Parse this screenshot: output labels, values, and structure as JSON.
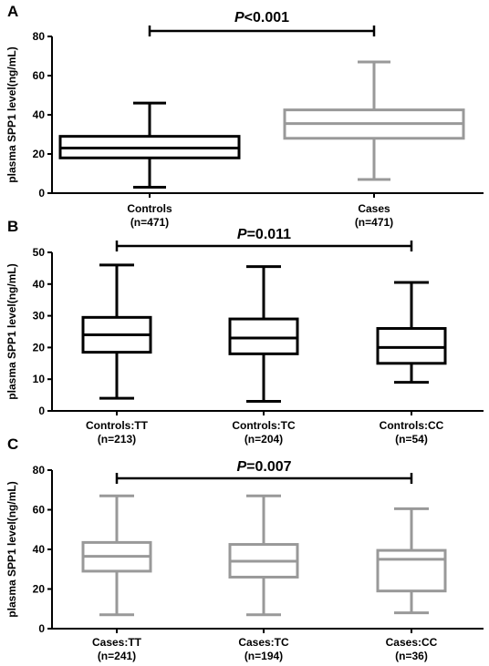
{
  "chart_data": [
    {
      "type": "box",
      "panel": "A",
      "ylabel": "plasma SPP1 level(ng/mL)",
      "ylim": [
        0,
        80
      ],
      "yticks": [
        0,
        20,
        40,
        60,
        80
      ],
      "p_label": {
        "prefix": "P",
        "rest": "<0.001"
      },
      "comparison": [
        0,
        1
      ],
      "categories": [
        {
          "label": "Controls",
          "n": "(n=471)",
          "color": "#000000",
          "min": 3,
          "q1": 18,
          "median": 23,
          "q3": 29,
          "max": 46
        },
        {
          "label": "Cases",
          "n": "(n=471)",
          "color": "#999999",
          "min": 7,
          "q1": 28,
          "median": 35.5,
          "q3": 42.5,
          "max": 67
        }
      ]
    },
    {
      "type": "box",
      "panel": "B",
      "ylabel": "plasma SPP1 level(ng/mL)",
      "ylim": [
        0,
        50
      ],
      "yticks": [
        0,
        10,
        20,
        30,
        40,
        50
      ],
      "p_label": {
        "prefix": "P",
        "rest": "=0.011"
      },
      "comparison": [
        0,
        2
      ],
      "categories": [
        {
          "label": "Controls:TT",
          "n": "(n=213)",
          "color": "#000000",
          "min": 4,
          "q1": 18.5,
          "median": 24,
          "q3": 29.5,
          "max": 46
        },
        {
          "label": "Controls:TC",
          "n": "(n=204)",
          "color": "#000000",
          "min": 3,
          "q1": 18,
          "median": 23,
          "q3": 29,
          "max": 45.5
        },
        {
          "label": "Controls:CC",
          "n": "(n=54)",
          "color": "#000000",
          "min": 9,
          "q1": 15,
          "median": 20,
          "q3": 26,
          "max": 40.5
        }
      ]
    },
    {
      "type": "box",
      "panel": "C",
      "ylabel": "plasma SPP1 level(ng/mL)",
      "ylim": [
        0,
        80
      ],
      "yticks": [
        0,
        20,
        40,
        60,
        80
      ],
      "p_label": {
        "prefix": "P",
        "rest": "=0.007"
      },
      "comparison": [
        0,
        2
      ],
      "categories": [
        {
          "label": "Cases:TT",
          "n": "(n=241)",
          "color": "#999999",
          "min": 7,
          "q1": 29,
          "median": 36.5,
          "q3": 43.5,
          "max": 67
        },
        {
          "label": "Cases:TC",
          "n": "(n=194)",
          "color": "#999999",
          "min": 7,
          "q1": 26,
          "median": 34,
          "q3": 42.5,
          "max": 67
        },
        {
          "label": "Cases:CC",
          "n": "(n=36)",
          "color": "#999999",
          "min": 8,
          "q1": 19,
          "median": 35,
          "q3": 39.5,
          "max": 60.5
        }
      ]
    }
  ]
}
